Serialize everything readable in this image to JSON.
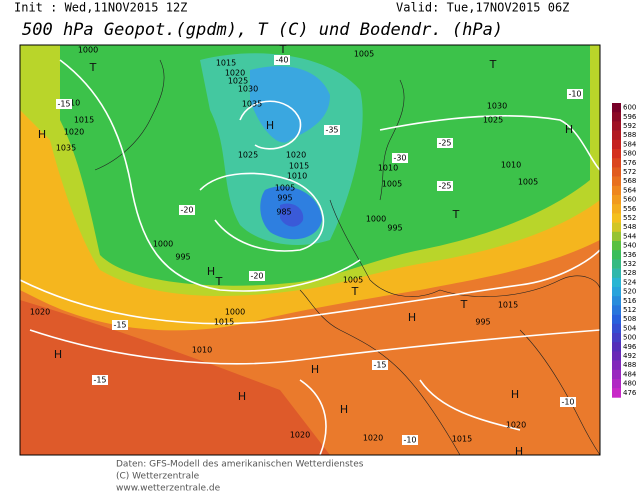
{
  "header": {
    "init": "Init : Wed,11NOV2015 12Z",
    "valid": "Valid: Tue,17NOV2015 06Z",
    "title": "500 hPa Geopot.(gpdm), T (C) und Bodendr. (hPa)"
  },
  "colorbar": {
    "labels": [
      600,
      596,
      592,
      588,
      584,
      580,
      576,
      572,
      568,
      564,
      560,
      556,
      552,
      548,
      544,
      540,
      536,
      532,
      528,
      524,
      520,
      516,
      512,
      508,
      504,
      500,
      496,
      492,
      488,
      484,
      480,
      476
    ]
  },
  "map_labels": [
    "1000",
    "T",
    "1015",
    "1020",
    "1025",
    "1030",
    "1035",
    "H",
    "T",
    "1005",
    "T",
    "1010",
    "1015",
    "1020",
    "1035",
    "H",
    "1030",
    "1025",
    "H",
    "1025",
    "1020",
    "1015",
    "1010",
    "1005",
    "995",
    "985",
    "1010",
    "1005",
    "1010",
    "1005",
    "1000",
    "995",
    "T",
    "1000",
    "995",
    "T",
    "H",
    "1000",
    "1015",
    "1010",
    "1005",
    "T",
    "H",
    "T",
    "1015",
    "995",
    "1020",
    "H",
    "H",
    "H",
    "1020",
    "1020",
    "H",
    "1015",
    "1020",
    "H",
    "H",
    "-40",
    "-35",
    "-30",
    "-25",
    "-20",
    "-15",
    "-10",
    "-15",
    "-20",
    "-25",
    "-15",
    "-10",
    "-15",
    "-10"
  ],
  "footer": {
    "line1": "Daten: GFS-Modell des amerikanischen Wetterdienstes",
    "line2": "(C) Wetterzentrale",
    "line3": "www.wetterzentrale.de"
  }
}
